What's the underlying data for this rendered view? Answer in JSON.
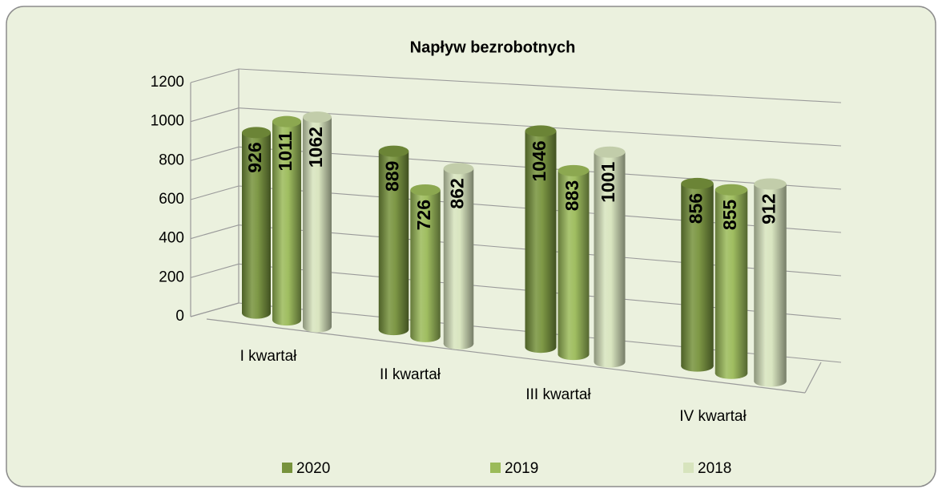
{
  "chart_data": {
    "type": "bar",
    "title": "Napływ bezrobotnych",
    "categories": [
      "I kwartał",
      "II kwartał",
      "III kwartał",
      "IV kwartał"
    ],
    "series": [
      {
        "name": "2020",
        "color": "#77933c",
        "values": [
          926,
          889,
          1046,
          856
        ]
      },
      {
        "name": "2019",
        "color": "#9bbb59",
        "values": [
          1011,
          726,
          883,
          855
        ]
      },
      {
        "name": "2018",
        "color": "#d7e4bd",
        "values": [
          1062,
          862,
          1001,
          912
        ]
      }
    ],
    "ylim": [
      0,
      1200
    ],
    "yticks": [
      0,
      200,
      400,
      600,
      800,
      1000,
      1200
    ],
    "grid": true,
    "legend": "bottom"
  }
}
